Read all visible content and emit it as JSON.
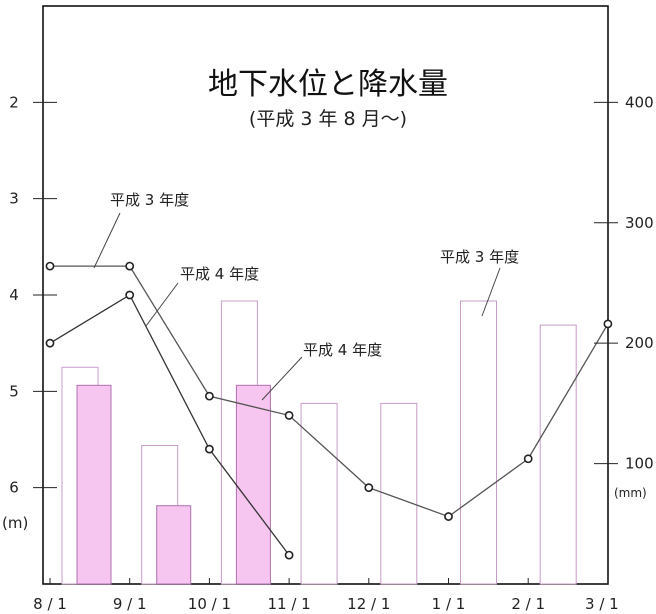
{
  "chart_data": {
    "type": "bar",
    "title": "地下水位と降水量",
    "subtitle": "(平成 3 年 8 月～)",
    "x_ticks": [
      "8 / 1",
      "9 / 1",
      "10 / 1",
      "11 / 1",
      "12 / 1",
      "1 / 1",
      "2 / 1",
      "3 / 1"
    ],
    "left_axis": {
      "unit": "(m)",
      "ticks": [
        "2",
        "3",
        "4",
        "5",
        "6"
      ],
      "range": [
        1.0,
        7.0
      ],
      "inverted": true
    },
    "right_axis": {
      "unit": "(mm)",
      "ticks": [
        "100",
        "200",
        "300",
        "400"
      ],
      "range": [
        0,
        480
      ]
    },
    "bars": {
      "h3": {
        "name": "平成 3 年度",
        "color": "#ffffff",
        "stroke": "#c79cc7",
        "months": [
          0,
          1,
          2,
          3,
          4,
          5,
          6
        ],
        "values": [
          180,
          115,
          235,
          150,
          150,
          235,
          215
        ]
      },
      "h4": {
        "name": "平成 4 年度",
        "color": "#f6c6f0",
        "stroke": "#b070b0",
        "months": [
          0,
          1,
          2
        ],
        "values": [
          165,
          65,
          165
        ]
      }
    },
    "lines": {
      "h3": {
        "name": "平成 3 年度",
        "color": "#555555",
        "x": [
          0,
          1,
          2,
          3,
          4,
          5,
          6,
          7
        ],
        "y": [
          3.7,
          3.7,
          5.05,
          5.25,
          6.0,
          6.3,
          5.7,
          4.3
        ]
      },
      "h4": {
        "name": "平成 4 年度",
        "color": "#333333",
        "x": [
          0,
          1,
          2,
          3
        ],
        "y": [
          4.5,
          4.0,
          5.6,
          6.7
        ]
      }
    },
    "annotations": [
      {
        "text": "平成 3 年度"
      },
      {
        "text": "平成 4 年度"
      },
      {
        "text": "平成 4 年度"
      },
      {
        "text": "平成 3 年度"
      }
    ]
  }
}
